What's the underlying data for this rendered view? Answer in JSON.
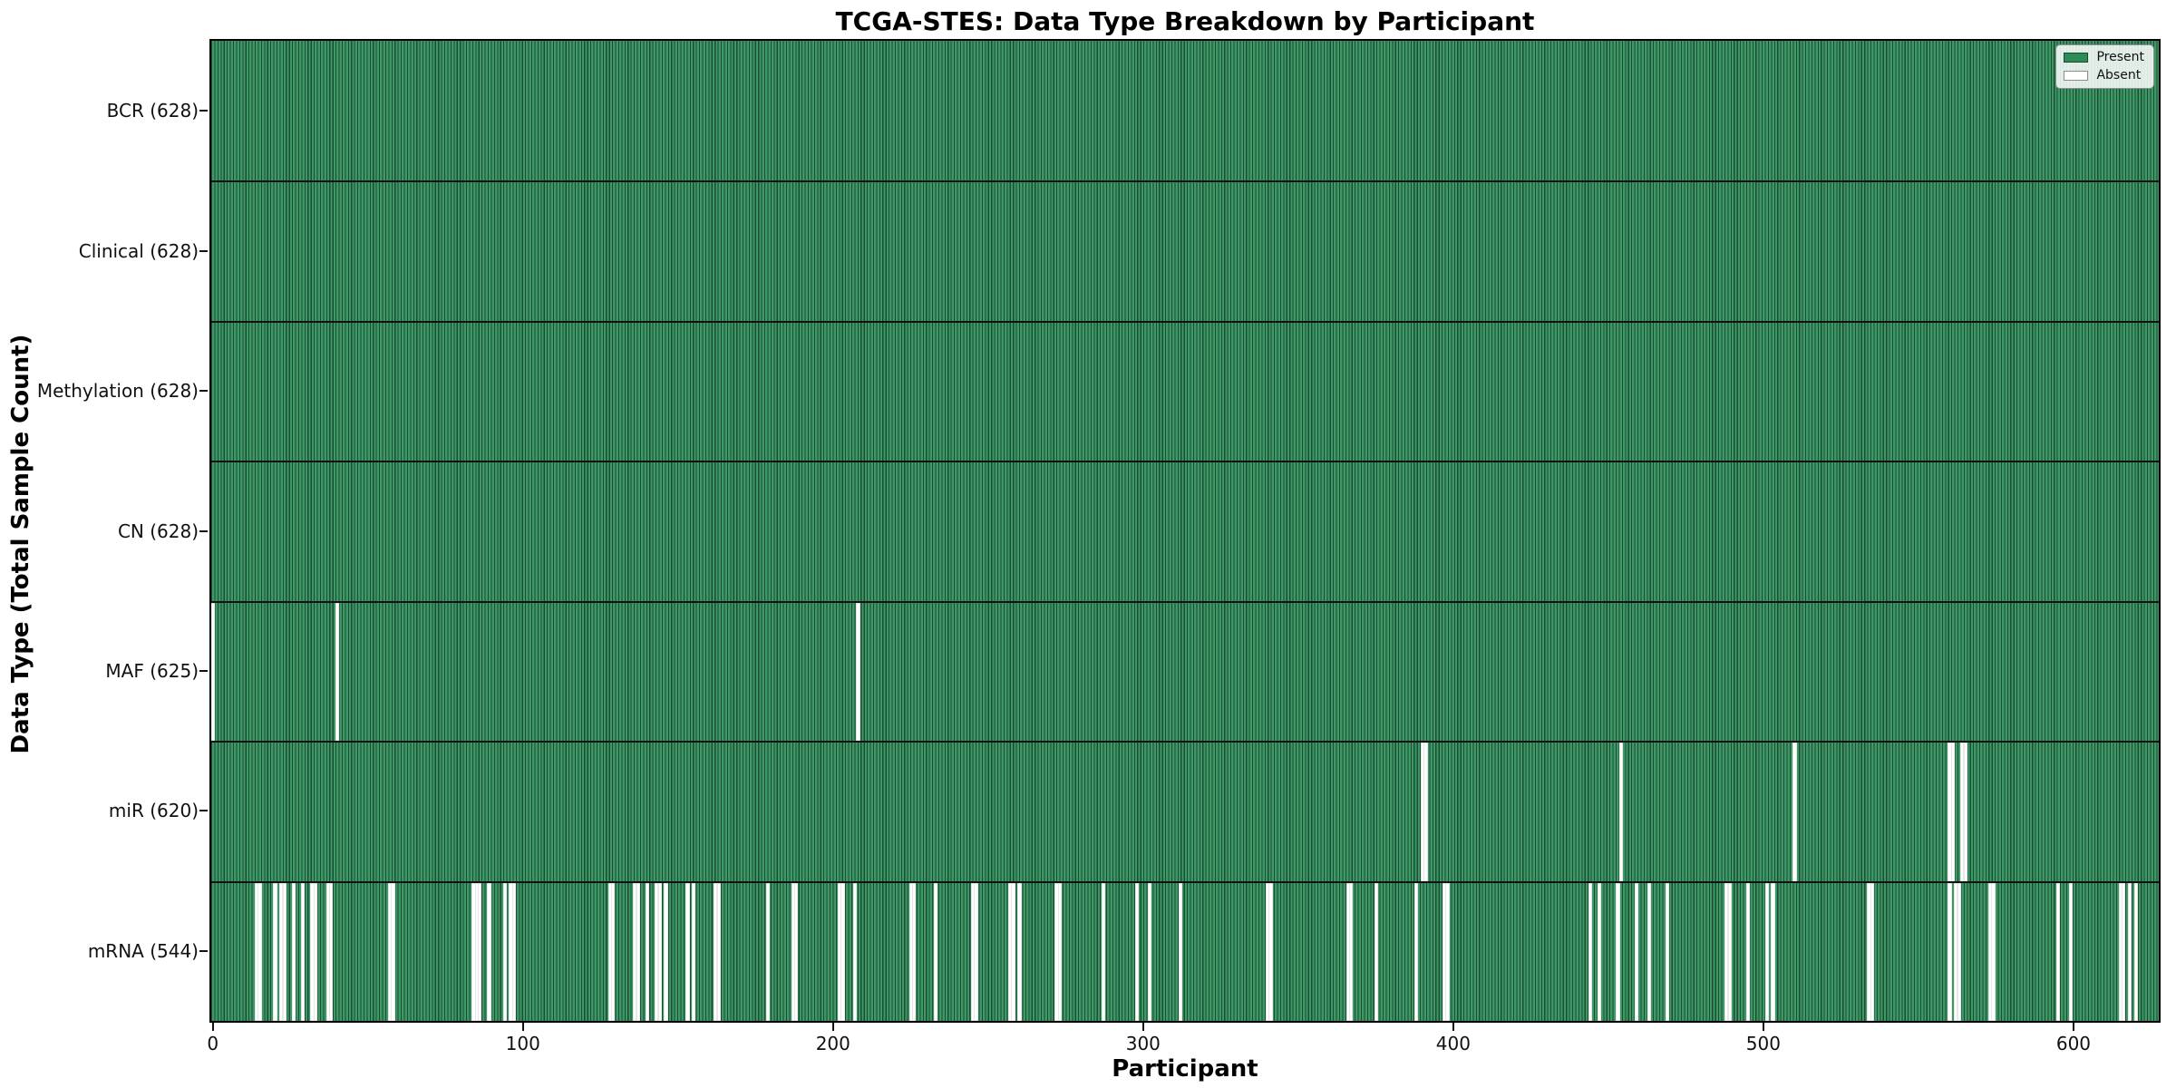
{
  "chart_data": {
    "type": "heatmap",
    "title": "TCGA-STES: Data Type Breakdown by Participant",
    "xlabel": "Participant",
    "ylabel": "Data Type (Total Sample Count)",
    "n_participants": 628,
    "x_ticks": [
      0,
      100,
      200,
      300,
      400,
      500,
      600
    ],
    "legend_position": "upper right",
    "grid": false,
    "colors": {
      "present_fill": "#2E8B57",
      "present_edge": "#174f30",
      "absent_fill": "#ffffff"
    },
    "legend": [
      {
        "label": "Present",
        "color": "#2E8B57"
      },
      {
        "label": "Absent",
        "color": "#ffffff"
      }
    ],
    "rows": [
      {
        "name": "BCR",
        "label": "BCR (628)",
        "present_count": 628,
        "absent_participants": []
      },
      {
        "name": "Clinical",
        "label": "Clinical (628)",
        "present_count": 628,
        "absent_participants": []
      },
      {
        "name": "Methylation",
        "label": "Methylation (628)",
        "present_count": 628,
        "absent_participants": []
      },
      {
        "name": "CN",
        "label": "CN (628)",
        "present_count": 628,
        "absent_participants": []
      },
      {
        "name": "MAF",
        "label": "MAF (625)",
        "present_count": 625,
        "absent_participants": [
          0,
          40,
          208
        ]
      },
      {
        "name": "miR",
        "label": "miR (620)",
        "present_count": 620,
        "absent_participants": [
          390,
          391,
          454,
          510,
          560,
          561,
          564,
          565
        ]
      },
      {
        "name": "mRNA",
        "label": "mRNA (544)",
        "present_count": 544,
        "absent_participants": [
          14,
          15,
          20,
          22,
          23,
          26,
          29,
          32,
          33,
          37,
          38,
          57,
          58,
          84,
          85,
          86,
          89,
          94,
          96,
          97,
          128,
          129,
          136,
          137,
          140,
          143,
          144,
          146,
          153,
          155,
          162,
          163,
          179,
          187,
          188,
          202,
          203,
          207,
          225,
          226,
          233,
          245,
          246,
          257,
          258,
          260,
          272,
          273,
          287,
          298,
          302,
          312,
          340,
          341,
          366,
          367,
          375,
          388,
          397,
          398,
          444,
          447,
          453,
          459,
          463,
          469,
          488,
          489,
          495,
          501,
          503,
          534,
          535,
          560,
          562,
          563,
          573,
          574,
          595,
          599,
          615,
          616,
          618,
          620
        ]
      }
    ]
  }
}
